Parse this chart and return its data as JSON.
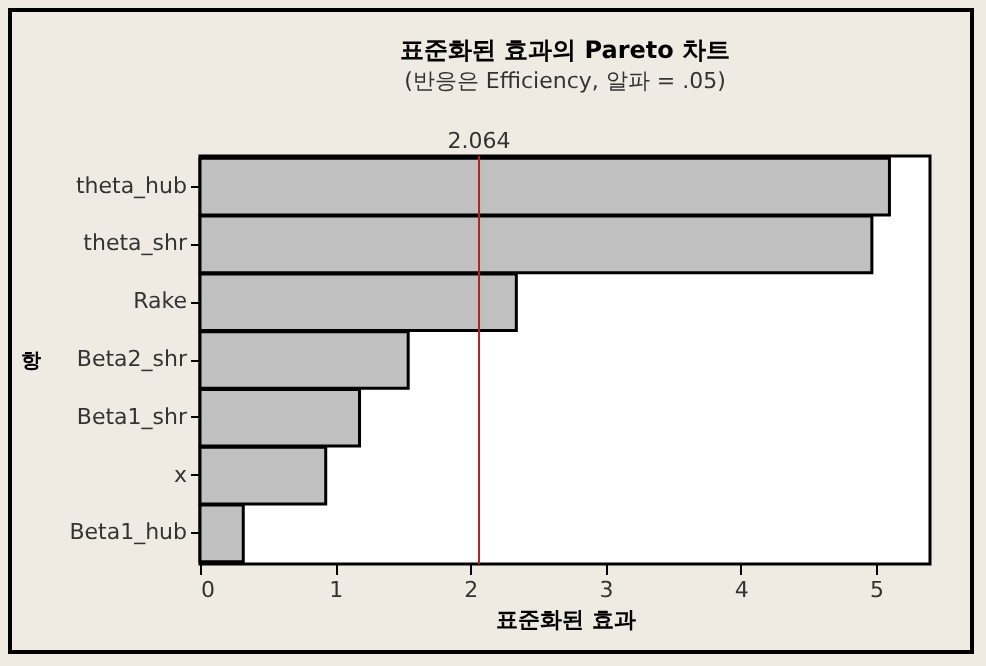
{
  "chart_data": {
    "type": "bar",
    "orientation": "horizontal",
    "title": "표준화된 효과의 Pareto 차트",
    "subtitle": "(반응은 Efficiency, 알파 =   .05)",
    "xlabel": "표준화된 효과",
    "ylabel": "항",
    "categories": [
      "theta_hub",
      "theta_shr",
      "Rake",
      "Beta2_shr",
      "Beta1_shr",
      "x",
      "Beta1_hub"
    ],
    "values": [
      5.1,
      4.97,
      2.34,
      1.54,
      1.18,
      0.93,
      0.32
    ],
    "color": "#c0c0c0",
    "xlim": [
      0,
      5.4
    ],
    "xticks": [
      0,
      1,
      2,
      3,
      4,
      5
    ],
    "grid": false,
    "ref_lines": [
      {
        "axis": "x",
        "value": 2.064,
        "label": "2.064",
        "color": "#b22222"
      }
    ]
  }
}
